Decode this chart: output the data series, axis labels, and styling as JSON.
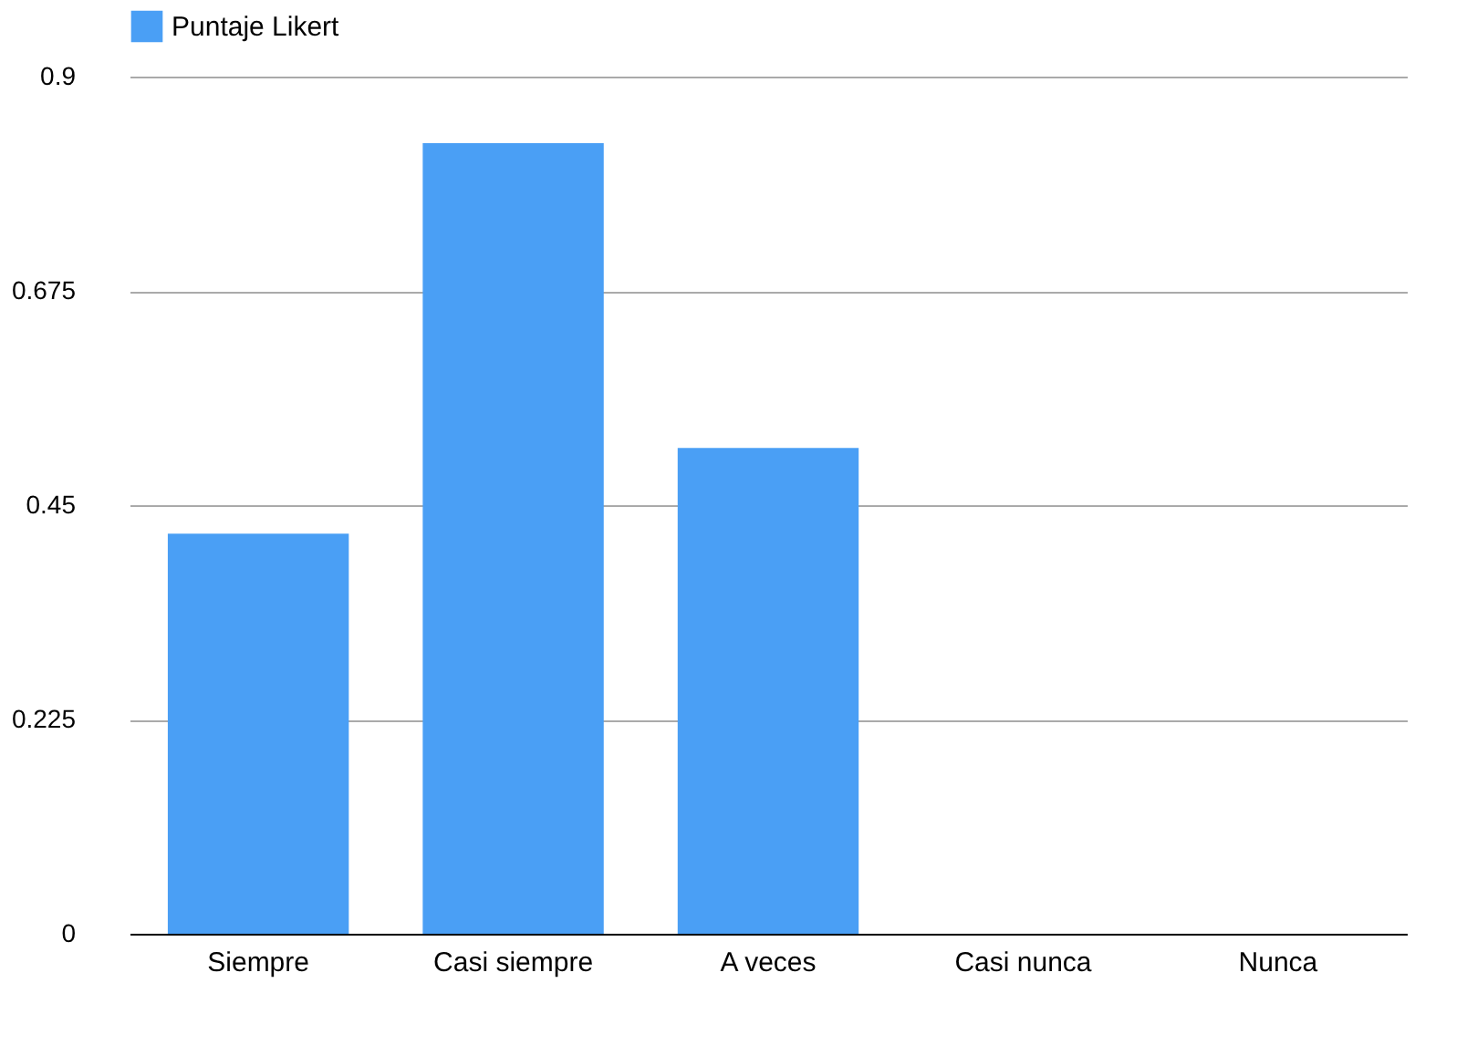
{
  "chart_data": {
    "type": "bar",
    "categories": [
      "Siempre",
      "Casi siempre",
      "A veces",
      "Casi nunca",
      "Nunca"
    ],
    "series": [
      {
        "name": "Puntaje Likert",
        "color": "#4a9ff5",
        "values": [
          0.42,
          0.83,
          0.51,
          0,
          0
        ]
      }
    ],
    "ylim": [
      0,
      0.9
    ],
    "yticks": [
      0,
      0.225,
      0.45,
      0.675,
      0.9
    ],
    "grid": "y",
    "legend": "top"
  }
}
